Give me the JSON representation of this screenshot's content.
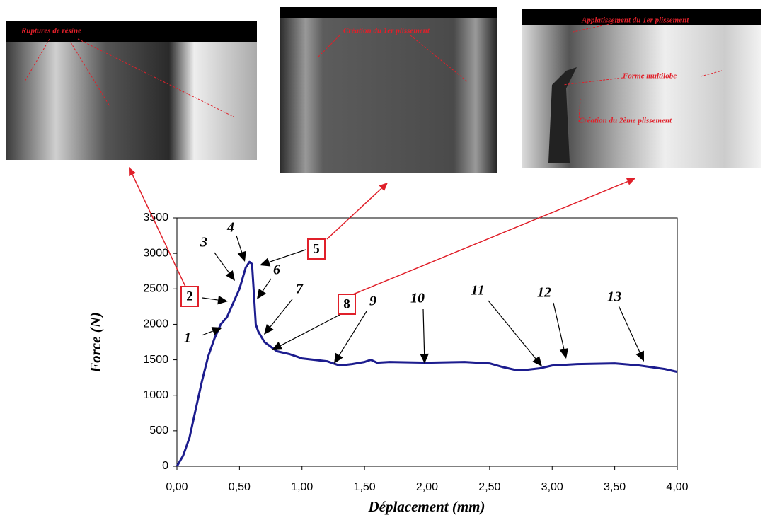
{
  "chart_data": {
    "type": "line",
    "x_label": "Déplacement (mm)",
    "y_label": "Force (N)",
    "color": "#1c1c8e",
    "x": [
      0,
      0.05,
      0.1,
      0.15,
      0.2,
      0.25,
      0.3,
      0.35,
      0.4,
      0.45,
      0.5,
      0.55,
      0.58,
      0.6,
      0.62,
      0.63,
      0.65,
      0.7,
      0.8,
      0.9,
      1.0,
      1.1,
      1.2,
      1.3,
      1.4,
      1.5,
      1.55,
      1.6,
      1.7,
      2.0,
      2.3,
      2.5,
      2.6,
      2.7,
      2.8,
      2.9,
      3.0,
      3.2,
      3.5,
      3.7,
      3.9,
      4.0
    ],
    "values": [
      0,
      150,
      400,
      800,
      1200,
      1550,
      1800,
      2000,
      2100,
      2300,
      2500,
      2800,
      2880,
      2850,
      2300,
      2000,
      1900,
      1750,
      1620,
      1580,
      1520,
      1500,
      1480,
      1420,
      1440,
      1470,
      1500,
      1460,
      1470,
      1460,
      1470,
      1450,
      1400,
      1360,
      1360,
      1380,
      1420,
      1440,
      1450,
      1420,
      1370,
      1330
    ],
    "xlim": [
      0,
      4
    ],
    "ylim": [
      0,
      3500
    ],
    "xticks": [
      {
        "value": 0,
        "label": "0,00"
      },
      {
        "value": 0.5,
        "label": "0,50"
      },
      {
        "value": 1,
        "label": "1,00"
      },
      {
        "value": 1.5,
        "label": "1,50"
      },
      {
        "value": 2,
        "label": "2,00"
      },
      {
        "value": 2.5,
        "label": "2,50"
      },
      {
        "value": 3,
        "label": "3,00"
      },
      {
        "value": 3.5,
        "label": "3,50"
      },
      {
        "value": 4,
        "label": "4,00"
      }
    ],
    "yticks": [
      0,
      500,
      1000,
      1500,
      2000,
      2500,
      3000,
      3500
    ],
    "grid": false,
    "annotations": [
      "1",
      "2",
      "3",
      "4",
      "5",
      "6",
      "7",
      "8",
      "9",
      "10",
      "11",
      "12",
      "13"
    ],
    "photo_labels": [
      "Ruptures de résine",
      "Création du 1er plissement",
      "Applatissement du 1er plissement",
      "Forme multilobe",
      "Création du 2ème plissement"
    ]
  }
}
